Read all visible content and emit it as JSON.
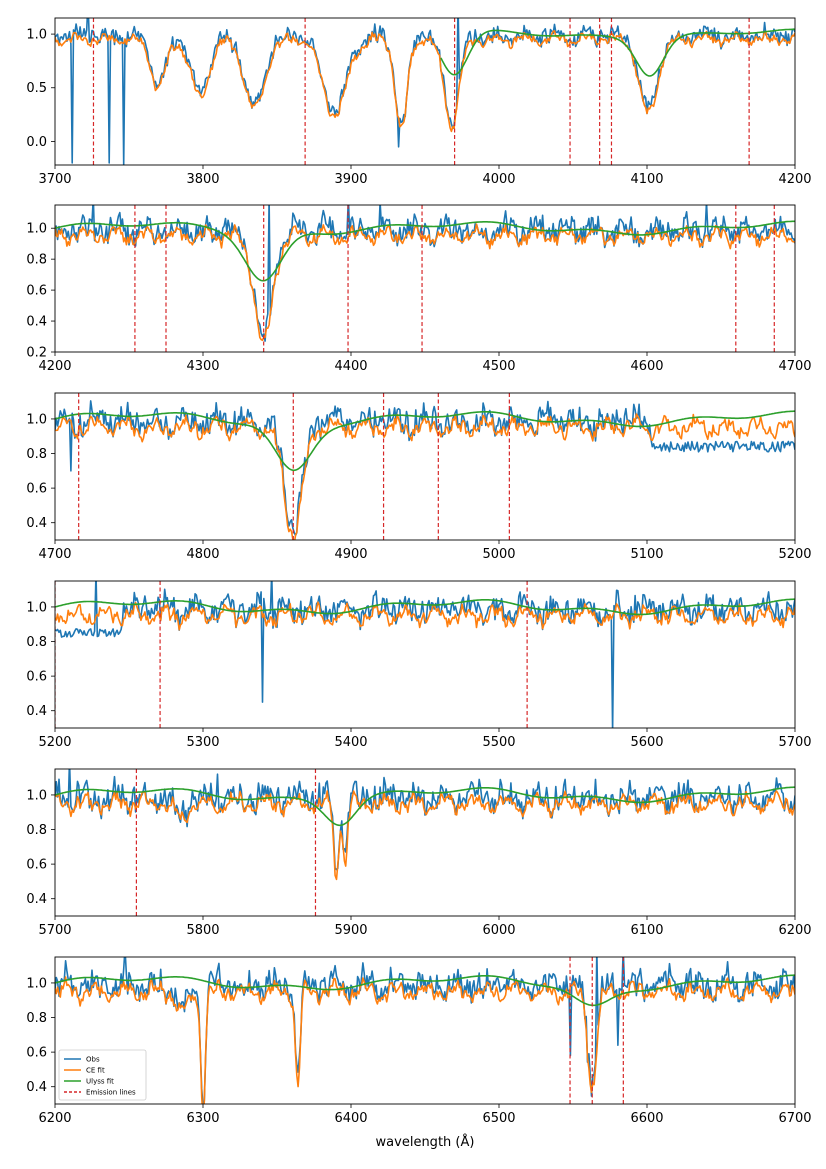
{
  "chart_data": {
    "type": "line",
    "title": "",
    "xlabel": "wavelength (Å)",
    "ylabel": "",
    "grid": false,
    "series_styles": {
      "obs": {
        "color": "#1f77b4"
      },
      "ce": {
        "color": "#ff7f0e"
      },
      "ulyss": {
        "color": "#2ca02c"
      },
      "emission": {
        "color": "#d62728",
        "dash": "dashed"
      }
    },
    "legend": {
      "placement": "lower-left, bottom panel",
      "entries": [
        {
          "label": "Obs",
          "series": "obs"
        },
        {
          "label": "CE fit",
          "series": "ce"
        },
        {
          "label": "Ulyss fit",
          "series": "ulyss"
        },
        {
          "label": "Emission lines",
          "series": "emission"
        }
      ]
    },
    "panels": [
      {
        "xlim": [
          3700,
          4200
        ],
        "ylim": [
          -0.22,
          1.15
        ],
        "xticks": [
          "3700",
          "3800",
          "3900",
          "4000",
          "4100",
          "4200"
        ],
        "yticks": [
          "0.0",
          "0.5",
          "1.0"
        ],
        "emission_lines": [
          3726,
          3869,
          3970,
          4048,
          4068,
          4076,
          4169
        ],
        "ulyss_start": 3960,
        "absorptions": [
          {
            "c": 3770,
            "d": 0.45,
            "w": 5
          },
          {
            "c": 3798,
            "d": 0.55,
            "w": 6
          },
          {
            "c": 3835,
            "d": 0.65,
            "w": 7
          },
          {
            "c": 3889,
            "d": 0.7,
            "w": 8
          },
          {
            "c": 3934,
            "d": 0.85,
            "w": 4
          },
          {
            "c": 3968,
            "d": 0.8,
            "w": 5
          },
          {
            "c": 4101,
            "d": 0.7,
            "w": 6
          }
        ],
        "ulyss_absorptions": [
          {
            "c": 3970,
            "d": 0.4,
            "w": 9
          },
          {
            "c": 4102,
            "d": 0.35,
            "w": 9
          }
        ],
        "spikes": [
          {
            "x": 3712,
            "y": -0.2
          },
          {
            "x": 3722,
            "y": 1.3
          },
          {
            "x": 3737,
            "y": -0.2
          },
          {
            "x": 3746,
            "y": -0.22
          },
          {
            "x": 3932,
            "y": -0.05
          },
          {
            "x": 3972,
            "y": 1.3
          }
        ]
      },
      {
        "xlim": [
          4200,
          4700
        ],
        "ylim": [
          0.2,
          1.15
        ],
        "xticks": [
          "4200",
          "4300",
          "4400",
          "4500",
          "4600",
          "4700"
        ],
        "yticks": [
          "0.2",
          "0.4",
          "0.6",
          "0.8",
          "1.0"
        ],
        "emission_lines": [
          4254,
          4275,
          4341,
          4398,
          4448,
          4660,
          4686
        ],
        "ulyss_start": 4200,
        "absorptions": [
          {
            "c": 4341,
            "d": 0.7,
            "w": 6
          }
        ],
        "ulyss_absorptions": [
          {
            "c": 4341,
            "d": 0.32,
            "w": 12
          }
        ],
        "spikes": [
          {
            "x": 4226,
            "y": 1.2
          },
          {
            "x": 4345,
            "y": 1.2
          },
          {
            "x": 4398,
            "y": 1.2
          },
          {
            "x": 4420,
            "y": 1.17
          },
          {
            "x": 4640,
            "y": 1.17
          }
        ]
      },
      {
        "xlim": [
          4700,
          5200
        ],
        "ylim": [
          0.3,
          1.15
        ],
        "xticks": [
          "4700",
          "4800",
          "4900",
          "5000",
          "5100",
          "5200"
        ],
        "yticks": [
          "0.4",
          "0.6",
          "0.8",
          "1.0"
        ],
        "emission_lines": [
          4716,
          4861,
          4922,
          4959,
          5007
        ],
        "ulyss_start": 4700,
        "absorptions": [
          {
            "c": 4861,
            "d": 0.62,
            "w": 6
          }
        ],
        "ulyss_absorptions": [
          {
            "c": 4861,
            "d": 0.28,
            "w": 12
          }
        ],
        "spikes": [
          {
            "x": 4711,
            "y": 0.7
          }
        ],
        "obs_step": {
          "x": 5103,
          "value": 0.84
        }
      },
      {
        "xlim": [
          5200,
          5700
        ],
        "ylim": [
          0.3,
          1.15
        ],
        "xticks": [
          "5200",
          "5300",
          "5400",
          "5500",
          "5600",
          "5700"
        ],
        "yticks": [
          "0.4",
          "0.6",
          "0.8",
          "1.0"
        ],
        "emission_lines": [
          5200,
          5271,
          5519
        ],
        "ulyss_start": 5200,
        "absorptions": [],
        "ulyss_absorptions": [],
        "spikes": [
          {
            "x": 5340,
            "y": 0.45
          },
          {
            "x": 5577,
            "y": 0.28
          },
          {
            "x": 5228,
            "y": 1.2
          },
          {
            "x": 5346,
            "y": 1.2
          }
        ],
        "obs_low_until": {
          "x": 5245,
          "value": 0.85
        }
      },
      {
        "xlim": [
          5700,
          6200
        ],
        "ylim": [
          0.3,
          1.15
        ],
        "xticks": [
          "5700",
          "5800",
          "5900",
          "6000",
          "6100",
          "6200"
        ],
        "yticks": [
          "0.4",
          "0.6",
          "0.8",
          "1.0"
        ],
        "emission_lines": [
          5755,
          5876
        ],
        "ulyss_start": 5700,
        "absorptions": [
          {
            "c": 5890,
            "d": 0.45,
            "w": 1.5
          },
          {
            "c": 5896,
            "d": 0.35,
            "w": 1.5
          },
          {
            "c": 5785,
            "d": 0.1,
            "w": 4
          }
        ],
        "ulyss_absorptions": [
          {
            "c": 5893,
            "d": 0.14,
            "w": 10
          }
        ],
        "spikes": [
          {
            "x": 5710,
            "y": 1.2
          },
          {
            "x": 5810,
            "y": 1.12
          }
        ]
      },
      {
        "xlim": [
          6200,
          6700
        ],
        "ylim": [
          0.3,
          1.15
        ],
        "xticks": [
          "6200",
          "6300",
          "6400",
          "6500",
          "6600",
          "6700"
        ],
        "yticks": [
          "0.4",
          "0.6",
          "0.8",
          "1.0"
        ],
        "emission_lines": [
          6548,
          6563,
          6584
        ],
        "ulyss_start": 6200,
        "absorptions": [
          {
            "c": 6563,
            "d": 0.55,
            "w": 3
          },
          {
            "c": 6300,
            "d": 0.68,
            "w": 1.5
          },
          {
            "c": 6364,
            "d": 0.55,
            "w": 1.5
          },
          {
            "c": 6287,
            "d": 0.12,
            "w": 4
          }
        ],
        "ulyss_absorptions": [
          {
            "c": 6563,
            "d": 0.12,
            "w": 12
          }
        ],
        "spikes": [
          {
            "x": 6247,
            "y": 1.2
          },
          {
            "x": 6566,
            "y": 1.2
          },
          {
            "x": 6584,
            "y": 1.2
          },
          {
            "x": 6580,
            "y": 0.64
          },
          {
            "x": 6548,
            "y": 0.58
          }
        ]
      }
    ]
  }
}
